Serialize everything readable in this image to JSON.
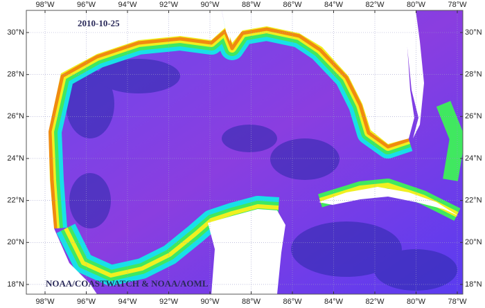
{
  "map": {
    "date": "2010-10-25",
    "credit": "NOAA/COASTWATCH & NOAA/AOML",
    "lon_ticks": [
      {
        "value": -98,
        "label": "98°W"
      },
      {
        "value": -96,
        "label": "96°W"
      },
      {
        "value": -94,
        "label": "94°W"
      },
      {
        "value": -92,
        "label": "92°W"
      },
      {
        "value": -90,
        "label": "90°W"
      },
      {
        "value": -88,
        "label": "88°W"
      },
      {
        "value": -86,
        "label": "86°W"
      },
      {
        "value": -84,
        "label": "84°W"
      },
      {
        "value": -82,
        "label": "82°W"
      },
      {
        "value": -80,
        "label": "80°W"
      },
      {
        "value": -78,
        "label": "78°W"
      }
    ],
    "lat_ticks": [
      {
        "value": 30,
        "label": "30°N"
      },
      {
        "value": 28,
        "label": "28°N"
      },
      {
        "value": 26,
        "label": "26°N"
      },
      {
        "value": 24,
        "label": "24°N"
      },
      {
        "value": 22,
        "label": "22°N"
      },
      {
        "value": 20,
        "label": "20°N"
      },
      {
        "value": 18,
        "label": "18°N"
      }
    ]
  }
}
